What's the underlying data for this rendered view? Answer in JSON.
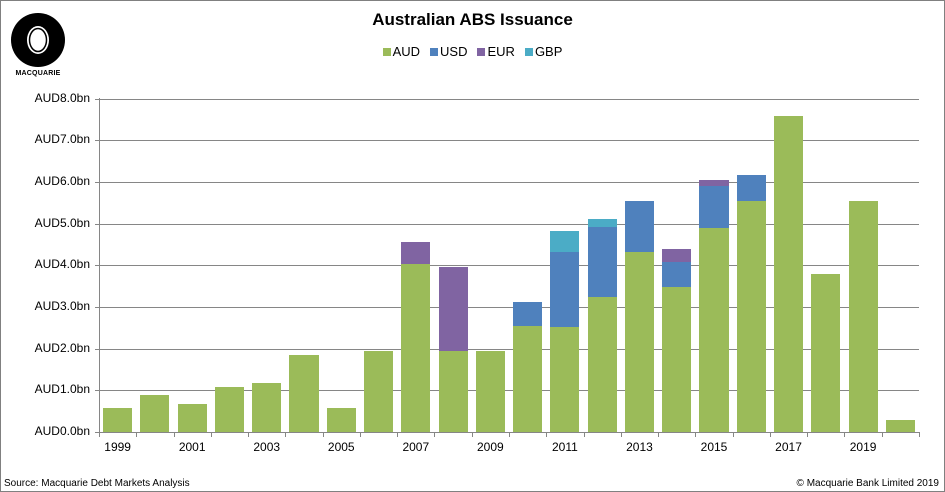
{
  "header": {
    "logo_text": "MACQUARIE",
    "title": "Australian ABS Issuance"
  },
  "legend": [
    {
      "label": "AUD",
      "color": "#9BBB59"
    },
    {
      "label": "USD",
      "color": "#4F81BD"
    },
    {
      "label": "EUR",
      "color": "#8064A2"
    },
    {
      "label": "GBP",
      "color": "#4BACC6"
    }
  ],
  "y_axis": {
    "labels": [
      "AUD8.0bn",
      "AUD7.0bn",
      "AUD6.0bn",
      "AUD5.0bn",
      "AUD4.0bn",
      "AUD3.0bn",
      "AUD2.0bn",
      "AUD1.0bn",
      "AUD0.0bn"
    ]
  },
  "x_axis": {
    "labels": [
      "1999",
      "2001",
      "2003",
      "2005",
      "2007",
      "2009",
      "2011",
      "2013",
      "2015",
      "2017",
      "2019"
    ]
  },
  "footer": {
    "source": "Source: Macquarie Debt Markets Analysis",
    "copyright": "© Macquarie Bank Limited 2019"
  },
  "chart_data": {
    "type": "bar",
    "stacked": true,
    "title": "Australian ABS Issuance",
    "xlabel": "",
    "ylabel": "",
    "ylim": [
      0,
      8
    ],
    "y_unit": "AUD bn",
    "grid": true,
    "legend_position": "top",
    "categories": [
      "1999",
      "2000",
      "2001",
      "2002",
      "2003",
      "2004",
      "2005",
      "2006",
      "2007",
      "2008",
      "2009",
      "2010",
      "2011",
      "2012",
      "2013",
      "2014",
      "2015",
      "2016",
      "2017",
      "2018",
      "2019",
      "2020"
    ],
    "x_tick_labels": [
      "1999",
      "2001",
      "2003",
      "2005",
      "2007",
      "2009",
      "2011",
      "2013",
      "2015",
      "2017",
      "2019"
    ],
    "series": [
      {
        "name": "AUD",
        "color": "#9BBB59",
        "values": [
          0.57,
          0.89,
          0.67,
          1.08,
          1.17,
          1.84,
          0.57,
          1.94,
          4.02,
          1.94,
          1.94,
          2.54,
          2.51,
          3.23,
          4.31,
          3.49,
          4.9,
          5.53,
          7.59,
          3.78,
          5.55,
          0.29
        ]
      },
      {
        "name": "USD",
        "color": "#4F81BD",
        "values": [
          0,
          0,
          0,
          0,
          0,
          0,
          0,
          0,
          0,
          0,
          0,
          0.57,
          1.8,
          1.7,
          1.24,
          0.58,
          0.99,
          0.64,
          0,
          0,
          0,
          0
        ]
      },
      {
        "name": "EUR",
        "color": "#8064A2",
        "values": [
          0,
          0,
          0,
          0,
          0,
          0,
          0,
          0,
          0.55,
          2.01,
          0,
          0,
          0,
          0,
          0,
          0.31,
          0.16,
          0,
          0,
          0,
          0,
          0
        ]
      },
      {
        "name": "GBP",
        "color": "#4BACC6",
        "values": [
          0,
          0,
          0,
          0,
          0,
          0,
          0,
          0,
          0,
          0,
          0,
          0,
          0.52,
          0.17,
          0,
          0,
          0,
          0,
          0,
          0,
          0,
          0
        ]
      }
    ]
  }
}
